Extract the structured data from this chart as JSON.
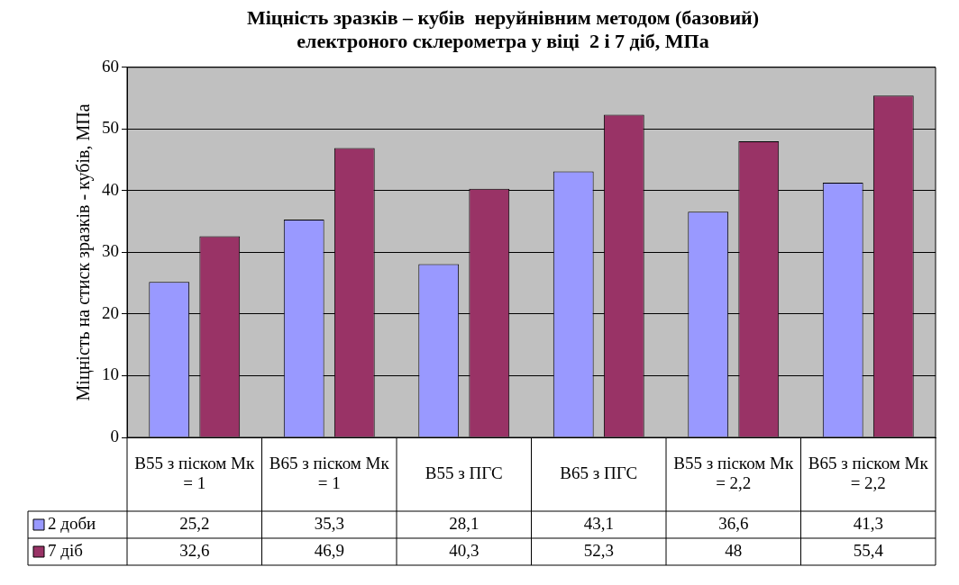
{
  "chart_data": {
    "type": "bar",
    "title": "Міцність зразків – кубів  неруйнівним методом (базовий) електроного склерометра у віці  2 і 7 діб, МПа",
    "ylabel": "Міцність на стиск зразків - кубів, МПа",
    "categories": [
      "В55 з піском Мк = 1",
      "В65 з піском Мк = 1",
      "В55 з ПГС",
      "В65 з ПГС",
      "В55 з піском Мк = 2,2",
      "В65 з піском Мк = 2,2"
    ],
    "series": [
      {
        "name": "2 доби",
        "color": "#9999ff",
        "values": [
          25.2,
          35.3,
          28.1,
          43.1,
          36.6,
          41.3
        ],
        "value_labels": [
          "25,2",
          "35,3",
          "28,1",
          "43,1",
          "36,6",
          "41,3"
        ]
      },
      {
        "name": "7 діб",
        "color": "#993366",
        "values": [
          32.6,
          46.9,
          40.3,
          52.3,
          48,
          55.4
        ],
        "value_labels": [
          "32,6",
          "46,9",
          "40,3",
          "52,3",
          "48",
          "55,4"
        ]
      }
    ],
    "ylim": [
      0,
      60
    ],
    "yticks": [
      0,
      10,
      20,
      30,
      40,
      50,
      60
    ],
    "grid": "y",
    "legend": "bottom"
  }
}
